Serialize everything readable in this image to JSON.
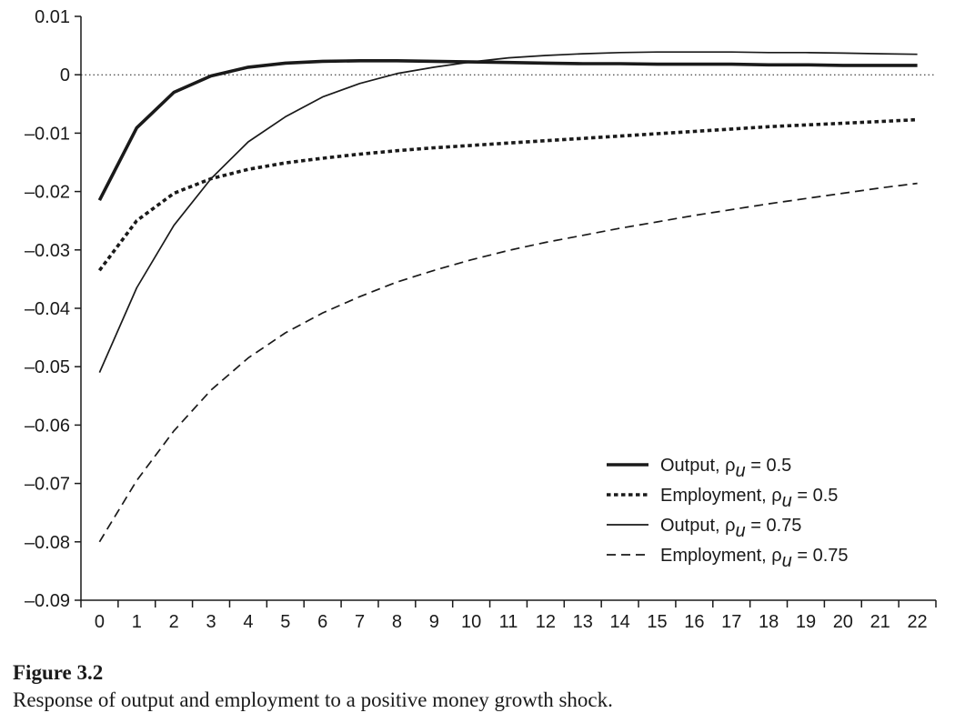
{
  "figure": {
    "title": "Figure 3.2",
    "caption": "Response of output and employment to a positive money growth shock."
  },
  "chart_data": {
    "type": "line",
    "title": "",
    "xlabel": "",
    "ylabel": "",
    "x": [
      0,
      1,
      2,
      3,
      4,
      5,
      6,
      7,
      8,
      9,
      10,
      11,
      12,
      13,
      14,
      15,
      16,
      17,
      18,
      19,
      20,
      21,
      22
    ],
    "xlim": [
      -0.5,
      22.5
    ],
    "ylim": [
      -0.09,
      0.01
    ],
    "yticks": [
      0.01,
      0,
      -0.01,
      -0.02,
      -0.03,
      -0.04,
      -0.05,
      -0.06,
      -0.07,
      -0.08,
      -0.09
    ],
    "ytick_labels": [
      "0.01",
      "0",
      "–0.01",
      "–0.02",
      "–0.03",
      "–0.04",
      "–0.05",
      "–0.06",
      "–0.07",
      "–0.08",
      "–0.09"
    ],
    "xtick_labels": [
      "0",
      "1",
      "2",
      "3",
      "4",
      "5",
      "6",
      "7",
      "8",
      "9",
      "10",
      "11",
      "12",
      "13",
      "14",
      "15",
      "16",
      "17",
      "18",
      "19",
      "20",
      "21",
      "22"
    ],
    "zero_line": "dotted",
    "grid": false,
    "legend_position": "bottom-right",
    "series": [
      {
        "name_main": "Output, ρ",
        "name_sub": "u",
        "name_tail": " = 0.5",
        "style": "thick-solid",
        "values": [
          -0.0215,
          -0.0091,
          -0.003,
          -0.0002,
          0.0013,
          0.002,
          0.0023,
          0.0024,
          0.0024,
          0.0023,
          0.0022,
          0.0021,
          0.002,
          0.0019,
          0.0019,
          0.0018,
          0.0018,
          0.0018,
          0.0017,
          0.0017,
          0.0016,
          0.0016,
          0.0016
        ]
      },
      {
        "name_main": "Employment, ρ",
        "name_sub": "u",
        "name_tail": " = 0.5",
        "style": "thick-dotted",
        "values": [
          -0.0335,
          -0.025,
          -0.0203,
          -0.0178,
          -0.0162,
          -0.0151,
          -0.0143,
          -0.0136,
          -0.013,
          -0.0125,
          -0.0121,
          -0.0117,
          -0.0113,
          -0.0109,
          -0.0105,
          -0.0101,
          -0.0097,
          -0.0093,
          -0.0089,
          -0.0086,
          -0.0083,
          -0.008,
          -0.0077
        ]
      },
      {
        "name_main": "Output, ρ",
        "name_sub": "u",
        "name_tail": " = 0.75",
        "style": "thin-solid",
        "values": [
          -0.051,
          -0.0365,
          -0.0258,
          -0.0178,
          -0.0115,
          -0.0072,
          -0.0038,
          -0.0015,
          0.0002,
          0.0013,
          0.0022,
          0.0029,
          0.0033,
          0.0036,
          0.0038,
          0.0039,
          0.0039,
          0.0039,
          0.0038,
          0.0038,
          0.0037,
          0.0036,
          0.0035
        ]
      },
      {
        "name_main": "Employment, ρ",
        "name_sub": "u",
        "name_tail": " = 0.75",
        "style": "thin-dashed",
        "values": [
          -0.08,
          -0.0695,
          -0.061,
          -0.054,
          -0.0485,
          -0.0442,
          -0.0408,
          -0.038,
          -0.0355,
          -0.0335,
          -0.0317,
          -0.0301,
          -0.0287,
          -0.0275,
          -0.0263,
          -0.0252,
          -0.0241,
          -0.0231,
          -0.0221,
          -0.0212,
          -0.0203,
          -0.0194,
          -0.0186
        ]
      }
    ]
  }
}
